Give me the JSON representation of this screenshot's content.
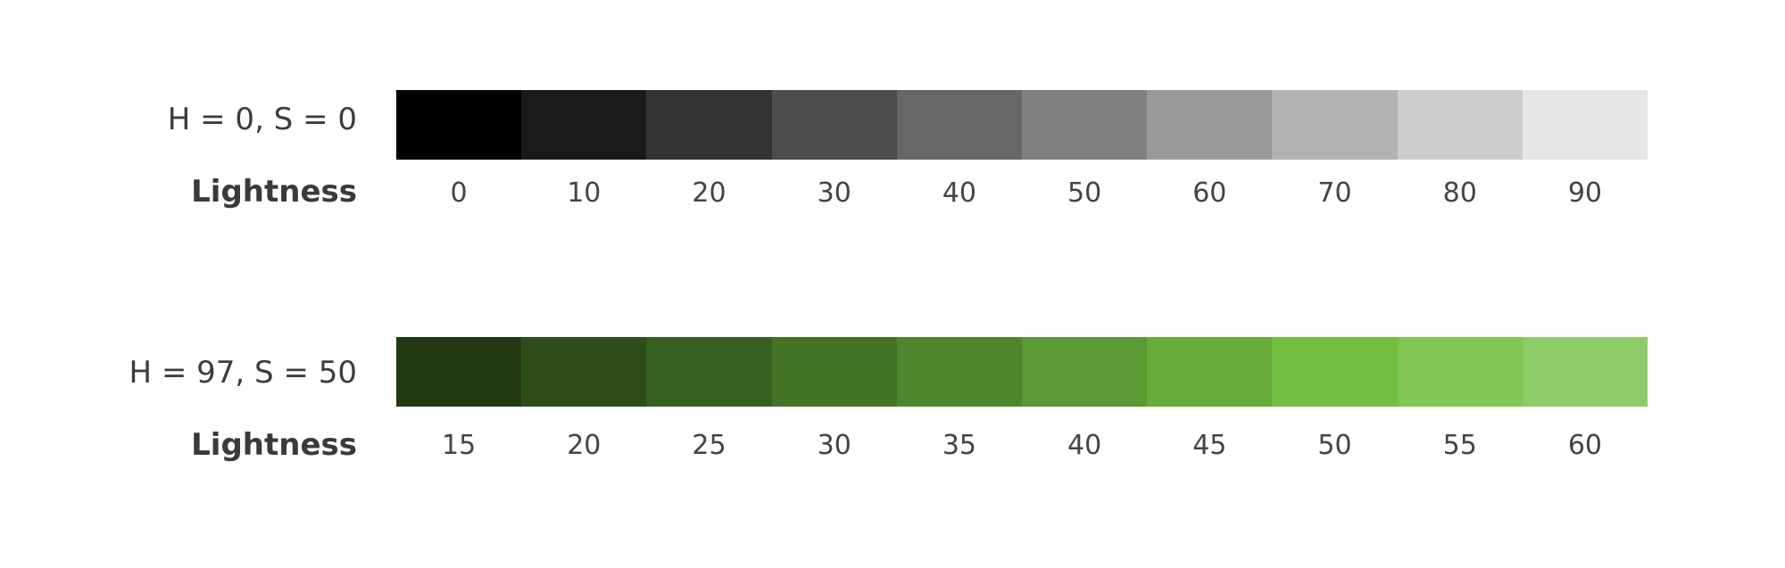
{
  "groups": [
    {
      "label": "H = 0, S = 0",
      "axis_label": "Lightness",
      "hue": 0,
      "saturation": 0,
      "lightness": [
        "0",
        "10",
        "20",
        "30",
        "40",
        "50",
        "60",
        "70",
        "80",
        "90"
      ]
    },
    {
      "label": "H = 97, S = 50",
      "axis_label": "Lightness",
      "hue": 97,
      "saturation": 50,
      "lightness": [
        "15",
        "20",
        "25",
        "30",
        "35",
        "40",
        "45",
        "50",
        "55",
        "60"
      ]
    }
  ]
}
